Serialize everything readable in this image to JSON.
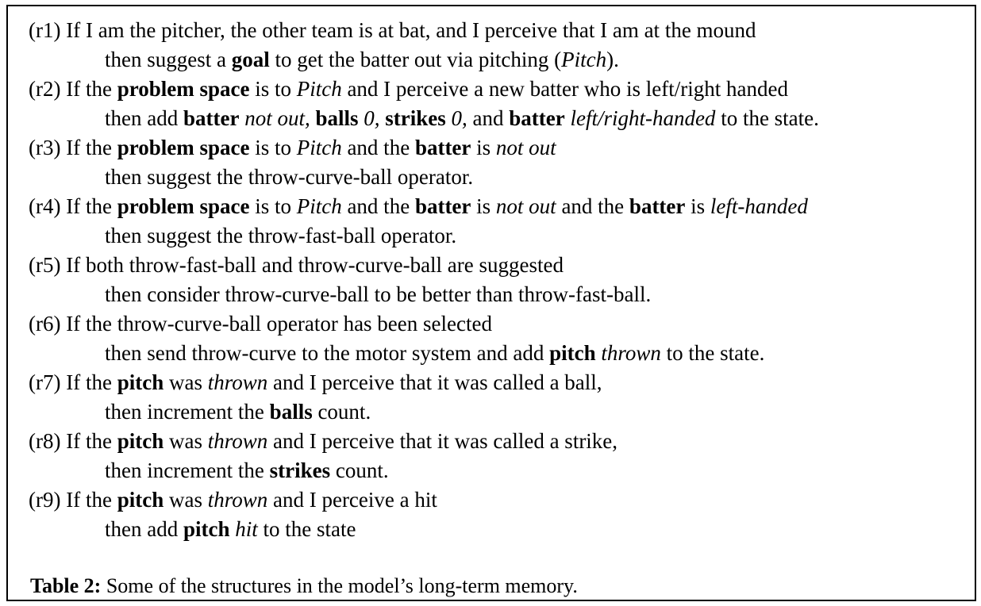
{
  "rules": [
    {
      "condition": [
        {
          "t": "(r1) If I am the pitcher, the other team is at bat, and I perceive that I am at the mound",
          "s": ""
        }
      ],
      "action": [
        {
          "t": "then suggest a ",
          "s": ""
        },
        {
          "t": "goal",
          "s": "b"
        },
        {
          "t": " to get the batter out via pitching (",
          "s": ""
        },
        {
          "t": "Pitch",
          "s": "i"
        },
        {
          "t": ").",
          "s": ""
        }
      ]
    },
    {
      "condition": [
        {
          "t": "(r2) If the ",
          "s": ""
        },
        {
          "t": "problem space",
          "s": "b"
        },
        {
          "t": " is to ",
          "s": ""
        },
        {
          "t": "Pitch",
          "s": "i"
        },
        {
          "t": " and I perceive a new batter who is left/right handed",
          "s": ""
        }
      ],
      "action": [
        {
          "t": "then add ",
          "s": ""
        },
        {
          "t": "batter",
          "s": "b"
        },
        {
          "t": " ",
          "s": ""
        },
        {
          "t": "not out,",
          "s": "i"
        },
        {
          "t": " ",
          "s": ""
        },
        {
          "t": "balls",
          "s": "b"
        },
        {
          "t": " ",
          "s": ""
        },
        {
          "t": "0,",
          "s": "i"
        },
        {
          "t": " ",
          "s": ""
        },
        {
          "t": "strikes",
          "s": "b"
        },
        {
          "t": " ",
          "s": ""
        },
        {
          "t": "0,",
          "s": "i"
        },
        {
          "t": " and ",
          "s": ""
        },
        {
          "t": "batter",
          "s": "b"
        },
        {
          "t": " ",
          "s": ""
        },
        {
          "t": "left/right-handed",
          "s": "i"
        },
        {
          "t": " to the state.",
          "s": ""
        }
      ]
    },
    {
      "condition": [
        {
          "t": "(r3) If the ",
          "s": ""
        },
        {
          "t": "problem space",
          "s": "b"
        },
        {
          "t": " is to ",
          "s": ""
        },
        {
          "t": "Pitch",
          "s": "i"
        },
        {
          "t": " and the ",
          "s": ""
        },
        {
          "t": "batter",
          "s": "b"
        },
        {
          "t": " is ",
          "s": ""
        },
        {
          "t": "not out",
          "s": "i"
        }
      ],
      "action": [
        {
          "t": "then suggest the throw-curve-ball operator.",
          "s": ""
        }
      ]
    },
    {
      "condition": [
        {
          "t": "(r4) If the ",
          "s": ""
        },
        {
          "t": "problem space",
          "s": "b"
        },
        {
          "t": " is to ",
          "s": ""
        },
        {
          "t": "Pitch",
          "s": "i"
        },
        {
          "t": " and the ",
          "s": ""
        },
        {
          "t": "batter",
          "s": "b"
        },
        {
          "t": " is ",
          "s": ""
        },
        {
          "t": "not out",
          "s": "i"
        },
        {
          "t": " and the ",
          "s": ""
        },
        {
          "t": "batter",
          "s": "b"
        },
        {
          "t": " is ",
          "s": ""
        },
        {
          "t": "left-handed",
          "s": "i"
        }
      ],
      "action": [
        {
          "t": "then suggest the throw-fast-ball operator.",
          "s": ""
        }
      ]
    },
    {
      "condition": [
        {
          "t": "(r5) If both throw-fast-ball and throw-curve-ball are suggested",
          "s": ""
        }
      ],
      "action": [
        {
          "t": "then consider throw-curve-ball to be better than throw-fast-ball.",
          "s": ""
        }
      ]
    },
    {
      "condition": [
        {
          "t": "(r6) If the throw-curve-ball operator has been selected",
          "s": ""
        }
      ],
      "action": [
        {
          "t": "then send throw-curve to the motor system and add ",
          "s": ""
        },
        {
          "t": "pitch",
          "s": "b"
        },
        {
          "t": " ",
          "s": ""
        },
        {
          "t": "thrown",
          "s": "i"
        },
        {
          "t": " to the state.",
          "s": ""
        }
      ]
    },
    {
      "condition": [
        {
          "t": "(r7) If the ",
          "s": ""
        },
        {
          "t": "pitch",
          "s": "b"
        },
        {
          "t": " was ",
          "s": ""
        },
        {
          "t": "thrown",
          "s": "i"
        },
        {
          "t": " and I perceive that it was called a ball,",
          "s": ""
        }
      ],
      "action": [
        {
          "t": "then increment the ",
          "s": ""
        },
        {
          "t": "balls",
          "s": "b"
        },
        {
          "t": " count.",
          "s": ""
        }
      ]
    },
    {
      "condition": [
        {
          "t": "(r8) If the ",
          "s": ""
        },
        {
          "t": "pitch",
          "s": "b"
        },
        {
          "t": " was ",
          "s": ""
        },
        {
          "t": "thrown",
          "s": "i"
        },
        {
          "t": " and I perceive that it was called a strike,",
          "s": ""
        }
      ],
      "action": [
        {
          "t": "then increment the ",
          "s": ""
        },
        {
          "t": "strikes",
          "s": "b"
        },
        {
          "t": " count.",
          "s": ""
        }
      ]
    },
    {
      "condition": [
        {
          "t": "(r9) If the ",
          "s": ""
        },
        {
          "t": "pitch",
          "s": "b"
        },
        {
          "t": " was ",
          "s": ""
        },
        {
          "t": "thrown",
          "s": "i"
        },
        {
          "t": " and I perceive a hit",
          "s": ""
        }
      ],
      "action": [
        {
          "t": "then add ",
          "s": ""
        },
        {
          "t": "pitch",
          "s": "b"
        },
        {
          "t": " ",
          "s": ""
        },
        {
          "t": "hit",
          "s": "i"
        },
        {
          "t": " to the state",
          "s": ""
        }
      ]
    }
  ],
  "caption": {
    "label": "Table 2:",
    "text": " Some of the structures in the model’s long-term memory."
  }
}
